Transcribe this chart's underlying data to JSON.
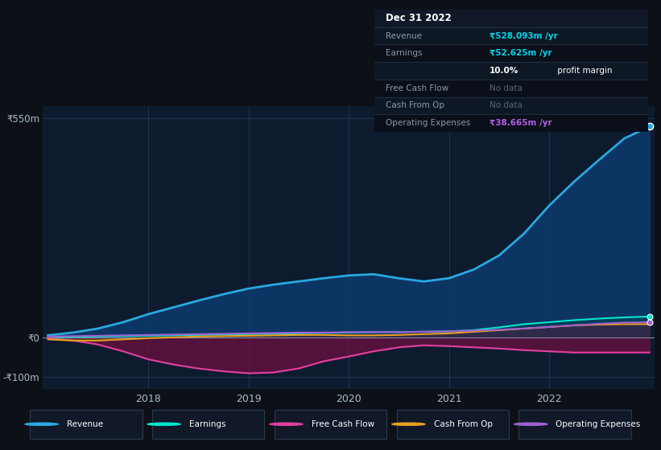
{
  "bg_color": "#0d1117",
  "plot_bg_color": "#0d1b2e",
  "grid_color": "#253550",
  "x_years": [
    2017.0,
    2017.25,
    2017.5,
    2017.75,
    2018.0,
    2018.25,
    2018.5,
    2018.75,
    2019.0,
    2019.25,
    2019.5,
    2019.75,
    2020.0,
    2020.25,
    2020.5,
    2020.75,
    2021.0,
    2021.25,
    2021.5,
    2021.75,
    2022.0,
    2022.25,
    2022.5,
    2022.75,
    2023.0
  ],
  "revenue": [
    5,
    12,
    22,
    38,
    58,
    75,
    92,
    108,
    122,
    132,
    140,
    148,
    155,
    158,
    148,
    140,
    148,
    170,
    205,
    260,
    330,
    390,
    445,
    498,
    528
  ],
  "earnings": [
    0,
    1,
    2,
    3,
    4,
    5,
    6,
    7,
    8,
    9,
    10,
    11,
    12,
    13,
    13,
    14,
    15,
    18,
    25,
    33,
    38,
    43,
    47,
    50,
    52
  ],
  "free_cash_flow": [
    -2,
    -8,
    -18,
    -35,
    -55,
    -68,
    -78,
    -85,
    -90,
    -88,
    -78,
    -60,
    -48,
    -35,
    -25,
    -20,
    -22,
    -25,
    -28,
    -32,
    -35,
    -38,
    -38,
    -38,
    -38
  ],
  "cash_from_op": [
    -5,
    -8,
    -8,
    -5,
    -2,
    0,
    2,
    3,
    4,
    5,
    6,
    6,
    5,
    5,
    6,
    8,
    10,
    14,
    18,
    22,
    26,
    30,
    32,
    33,
    33
  ],
  "operating_expenses": [
    2,
    3,
    4,
    5,
    6,
    7,
    8,
    9,
    10,
    11,
    12,
    12,
    13,
    13,
    13,
    14,
    15,
    17,
    19,
    22,
    26,
    30,
    34,
    37,
    38
  ],
  "revenue_color": "#29a8e0",
  "earnings_color": "#00e5cc",
  "fcf_color": "#e040a0",
  "cashop_color": "#e8a020",
  "opex_color": "#a060d0",
  "revenue_fill_color": "#0d3a6e",
  "fcf_fill_color": "#6b1040",
  "earnings_fill_color": "#004455",
  "ylim": [
    -130,
    580
  ],
  "yticks": [
    -100,
    0,
    550
  ],
  "ytick_labels": [
    "-₹100m",
    "₹0",
    "₹550m"
  ],
  "xticks": [
    2018,
    2019,
    2020,
    2021,
    2022
  ],
  "legend_items": [
    {
      "label": "Revenue",
      "color": "#29a8e0"
    },
    {
      "label": "Earnings",
      "color": "#00e5cc"
    },
    {
      "label": "Free Cash Flow",
      "color": "#e040a0"
    },
    {
      "label": "Cash From Op",
      "color": "#e8a020"
    },
    {
      "label": "Operating Expenses",
      "color": "#a060d0"
    }
  ],
  "info_box": {
    "title": "Dec 31 2022",
    "title_bg": "#111828",
    "box_bg": "#0a0f1a",
    "border_color": "#2a3a50",
    "rows": [
      {
        "label": "Revenue",
        "value": "₹528.093m /yr",
        "value_color": "#00d4e8",
        "nodata": false,
        "bold_part": null
      },
      {
        "label": "Earnings",
        "value": "₹52.625m /yr",
        "value_color": "#00d4e8",
        "nodata": false,
        "bold_part": null
      },
      {
        "label": "",
        "value": "10.0% profit margin",
        "value_color": "#ffffff",
        "nodata": false,
        "bold_part": "10.0%"
      },
      {
        "label": "Free Cash Flow",
        "value": "No data",
        "value_color": "#556677",
        "nodata": true,
        "bold_part": null
      },
      {
        "label": "Cash From Op",
        "value": "No data",
        "value_color": "#556677",
        "nodata": true,
        "bold_part": null
      },
      {
        "label": "Operating Expenses",
        "value": "₹38.665m /yr",
        "value_color": "#b060e0",
        "nodata": false,
        "bold_part": null
      }
    ]
  }
}
